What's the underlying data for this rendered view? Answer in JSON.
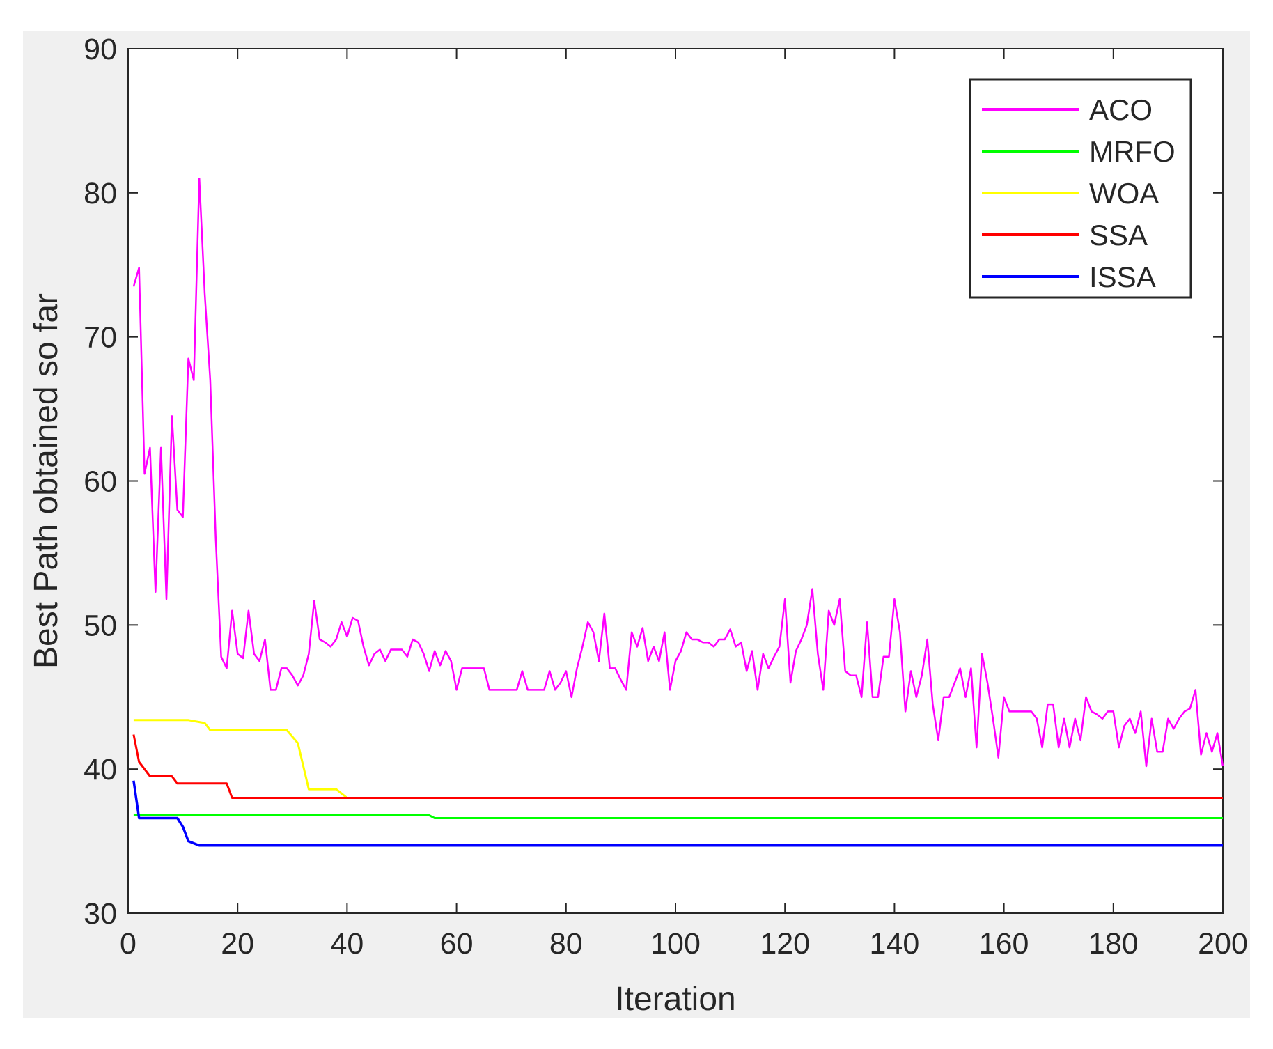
{
  "chart_data": {
    "type": "line",
    "title": "",
    "xlabel": "Iteration",
    "ylabel": "Best Path obtained so far",
    "xlim": [
      0,
      200
    ],
    "ylim": [
      30,
      90
    ],
    "xticks": [
      0,
      20,
      40,
      60,
      80,
      100,
      120,
      140,
      160,
      180,
      200
    ],
    "yticks": [
      30,
      40,
      50,
      60,
      70,
      80,
      90
    ],
    "grid": false,
    "legend_position": "top-right",
    "series": [
      {
        "name": "ACO",
        "color": "#ff00ff",
        "points": [
          [
            1,
            73.5
          ],
          [
            2,
            74.8
          ],
          [
            3,
            60.5
          ],
          [
            4,
            62.3
          ],
          [
            5,
            52.3
          ],
          [
            6,
            62.3
          ],
          [
            7,
            51.8
          ],
          [
            8,
            64.5
          ],
          [
            9,
            58
          ],
          [
            10,
            57.5
          ],
          [
            11,
            68.5
          ],
          [
            12,
            67
          ],
          [
            13,
            81
          ],
          [
            14,
            73
          ],
          [
            15,
            67
          ],
          [
            16,
            56
          ],
          [
            17,
            47.8
          ],
          [
            18,
            47
          ],
          [
            19,
            51
          ],
          [
            20,
            48
          ],
          [
            21,
            47.7
          ],
          [
            22,
            51
          ],
          [
            23,
            48
          ],
          [
            24,
            47.5
          ],
          [
            25,
            49
          ],
          [
            26,
            45.5
          ],
          [
            27,
            45.5
          ],
          [
            28,
            47
          ],
          [
            29,
            47
          ],
          [
            30,
            46.5
          ],
          [
            31,
            45.8
          ],
          [
            32,
            46.5
          ],
          [
            33,
            48
          ],
          [
            34,
            51.7
          ],
          [
            35,
            49
          ],
          [
            36,
            48.8
          ],
          [
            37,
            48.5
          ],
          [
            38,
            49
          ],
          [
            39,
            50.2
          ],
          [
            40,
            49.2
          ],
          [
            41,
            50.5
          ],
          [
            42,
            50.3
          ],
          [
            43,
            48.5
          ],
          [
            44,
            47.2
          ],
          [
            45,
            48
          ],
          [
            46,
            48.3
          ],
          [
            47,
            47.5
          ],
          [
            48,
            48.3
          ],
          [
            49,
            48.3
          ],
          [
            50,
            48.3
          ],
          [
            51,
            47.8
          ],
          [
            52,
            49
          ],
          [
            53,
            48.8
          ],
          [
            54,
            48
          ],
          [
            55,
            46.8
          ],
          [
            56,
            48.2
          ],
          [
            57,
            47.2
          ],
          [
            58,
            48.2
          ],
          [
            59,
            47.5
          ],
          [
            60,
            45.5
          ],
          [
            61,
            47
          ],
          [
            62,
            47
          ],
          [
            63,
            47
          ],
          [
            64,
            47
          ],
          [
            65,
            47
          ],
          [
            66,
            45.5
          ],
          [
            67,
            45.5
          ],
          [
            68,
            45.5
          ],
          [
            69,
            45.5
          ],
          [
            70,
            45.5
          ],
          [
            71,
            45.5
          ],
          [
            72,
            46.8
          ],
          [
            73,
            45.5
          ],
          [
            74,
            45.5
          ],
          [
            75,
            45.5
          ],
          [
            76,
            45.5
          ],
          [
            77,
            46.8
          ],
          [
            78,
            45.5
          ],
          [
            79,
            46
          ],
          [
            80,
            46.8
          ],
          [
            81,
            45
          ],
          [
            82,
            47
          ],
          [
            83,
            48.5
          ],
          [
            84,
            50.2
          ],
          [
            85,
            49.5
          ],
          [
            86,
            47.5
          ],
          [
            87,
            50.8
          ],
          [
            88,
            47
          ],
          [
            89,
            47
          ],
          [
            90,
            46.2
          ],
          [
            91,
            45.5
          ],
          [
            92,
            49.5
          ],
          [
            93,
            48.5
          ],
          [
            94,
            49.8
          ],
          [
            95,
            47.5
          ],
          [
            96,
            48.5
          ],
          [
            97,
            47.5
          ],
          [
            98,
            49.5
          ],
          [
            99,
            45.5
          ],
          [
            100,
            47.5
          ],
          [
            101,
            48.2
          ],
          [
            102,
            49.5
          ],
          [
            103,
            49
          ],
          [
            104,
            49
          ],
          [
            105,
            48.8
          ],
          [
            106,
            48.8
          ],
          [
            107,
            48.5
          ],
          [
            108,
            49
          ],
          [
            109,
            49
          ],
          [
            110,
            49.7
          ],
          [
            111,
            48.5
          ],
          [
            112,
            48.8
          ],
          [
            113,
            46.8
          ],
          [
            114,
            48.2
          ],
          [
            115,
            45.5
          ],
          [
            116,
            48
          ],
          [
            117,
            47
          ],
          [
            118,
            47.8
          ],
          [
            119,
            48.5
          ],
          [
            120,
            51.8
          ],
          [
            121,
            46
          ],
          [
            122,
            48.2
          ],
          [
            123,
            49
          ],
          [
            124,
            50
          ],
          [
            125,
            52.5
          ],
          [
            126,
            48
          ],
          [
            127,
            45.5
          ],
          [
            128,
            51
          ],
          [
            129,
            50
          ],
          [
            130,
            51.8
          ],
          [
            131,
            46.8
          ],
          [
            132,
            46.5
          ],
          [
            133,
            46.5
          ],
          [
            134,
            45
          ],
          [
            135,
            50.2
          ],
          [
            136,
            45
          ],
          [
            137,
            45
          ],
          [
            138,
            47.8
          ],
          [
            139,
            47.8
          ],
          [
            140,
            51.8
          ],
          [
            141,
            49.5
          ],
          [
            142,
            44
          ],
          [
            143,
            46.8
          ],
          [
            144,
            45
          ],
          [
            145,
            46.5
          ],
          [
            146,
            49
          ],
          [
            147,
            44.5
          ],
          [
            148,
            42
          ],
          [
            149,
            45
          ],
          [
            150,
            45
          ],
          [
            151,
            46
          ],
          [
            152,
            47
          ],
          [
            153,
            45
          ],
          [
            154,
            47
          ],
          [
            155,
            41.5
          ],
          [
            156,
            48
          ],
          [
            157,
            46
          ],
          [
            158,
            43.5
          ],
          [
            159,
            40.8
          ],
          [
            160,
            45
          ],
          [
            161,
            44
          ],
          [
            162,
            44
          ],
          [
            163,
            44
          ],
          [
            164,
            44
          ],
          [
            165,
            44
          ],
          [
            166,
            43.5
          ],
          [
            167,
            41.5
          ],
          [
            168,
            44.5
          ],
          [
            169,
            44.5
          ],
          [
            170,
            41.5
          ],
          [
            171,
            43.5
          ],
          [
            172,
            41.5
          ],
          [
            173,
            43.5
          ],
          [
            174,
            42
          ],
          [
            175,
            45
          ],
          [
            176,
            44
          ],
          [
            177,
            43.8
          ],
          [
            178,
            43.5
          ],
          [
            179,
            44
          ],
          [
            180,
            44
          ],
          [
            181,
            41.5
          ],
          [
            182,
            43
          ],
          [
            183,
            43.5
          ],
          [
            184,
            42.5
          ],
          [
            185,
            44
          ],
          [
            186,
            40.2
          ],
          [
            187,
            43.5
          ],
          [
            188,
            41.2
          ],
          [
            189,
            41.2
          ],
          [
            190,
            43.5
          ],
          [
            191,
            42.8
          ],
          [
            192,
            43.5
          ],
          [
            193,
            44
          ],
          [
            194,
            44.2
          ],
          [
            195,
            45.5
          ],
          [
            196,
            41
          ],
          [
            197,
            42.5
          ],
          [
            198,
            41.2
          ],
          [
            199,
            42.5
          ],
          [
            200,
            40.2
          ]
        ]
      },
      {
        "name": "MRFO",
        "color": "#00ff00",
        "points": [
          [
            1,
            36.8
          ],
          [
            55,
            36.8
          ],
          [
            56,
            36.6
          ],
          [
            200,
            36.6
          ]
        ]
      },
      {
        "name": "WOA",
        "color": "#ffff00",
        "points": [
          [
            1,
            43.4
          ],
          [
            11,
            43.4
          ],
          [
            14,
            43.2
          ],
          [
            15,
            42.7
          ],
          [
            29,
            42.7
          ],
          [
            31,
            41.8
          ],
          [
            33,
            38.6
          ],
          [
            38,
            38.6
          ],
          [
            40,
            38
          ],
          [
            200,
            38
          ]
        ]
      },
      {
        "name": "SSA",
        "color": "#ff0000",
        "points": [
          [
            1,
            42.4
          ],
          [
            2,
            40.5
          ],
          [
            3,
            40
          ],
          [
            4,
            39.5
          ],
          [
            8,
            39.5
          ],
          [
            9,
            39
          ],
          [
            18,
            39
          ],
          [
            19,
            38
          ],
          [
            200,
            38
          ]
        ]
      },
      {
        "name": "ISSA",
        "color": "#0000ff",
        "points": [
          [
            1,
            39.2
          ],
          [
            2,
            36.6
          ],
          [
            9,
            36.6
          ],
          [
            10,
            36
          ],
          [
            11,
            35
          ],
          [
            13,
            34.7
          ],
          [
            200,
            34.7
          ]
        ]
      }
    ]
  }
}
